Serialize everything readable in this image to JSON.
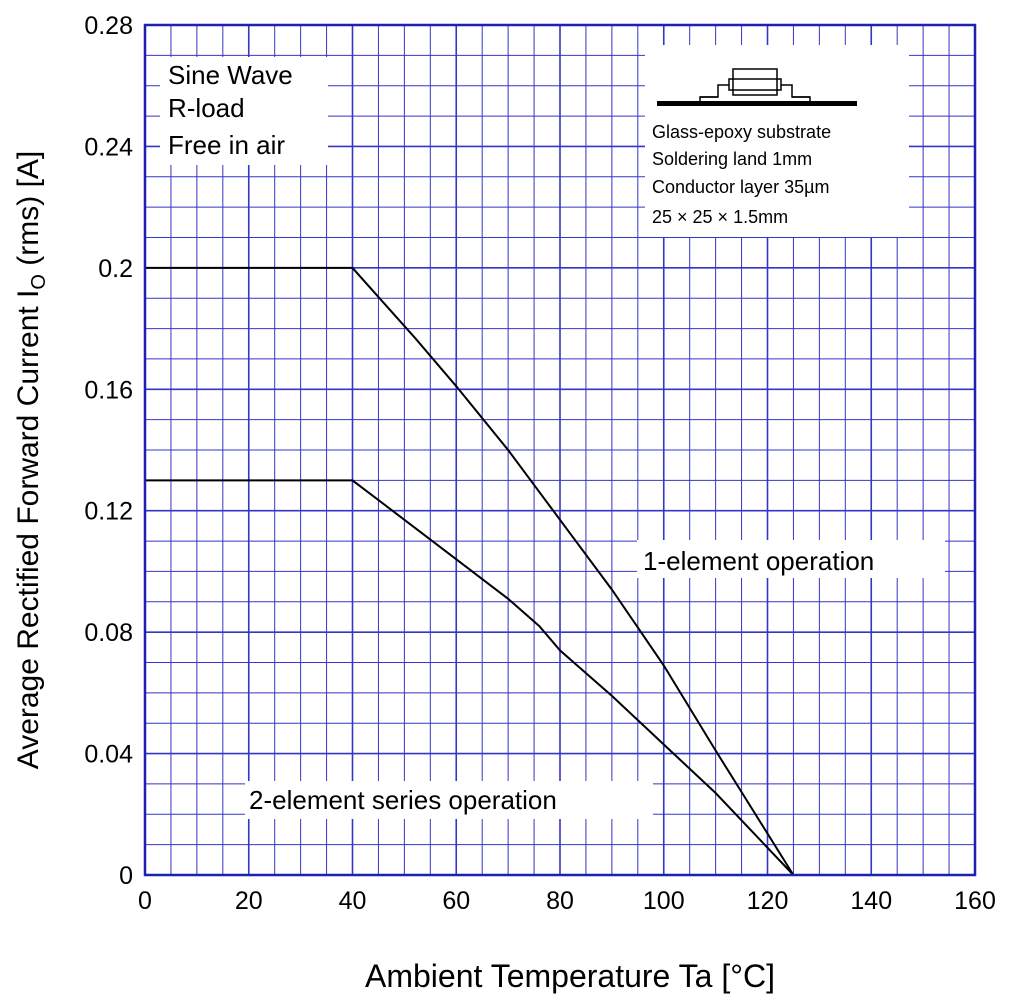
{
  "chart_data": {
    "type": "line",
    "xlabel": "Ambient Temperature  Ta  [°C]",
    "ylabel_main": "Average Rectified Forward Current  I",
    "ylabel_sub": "O",
    "ylabel_unit": "  (rms)  [A]",
    "xlim": [
      0,
      160
    ],
    "ylim": [
      0,
      0.28
    ],
    "x_ticks": [
      0,
      20,
      40,
      60,
      80,
      100,
      120,
      140,
      160
    ],
    "x_tick_labels": [
      "0",
      "20",
      "40",
      "60",
      "80",
      "100",
      "120",
      "140",
      "160"
    ],
    "y_ticks": [
      0,
      0.04,
      0.08,
      0.12,
      0.16,
      0.2,
      0.24,
      0.28
    ],
    "y_tick_labels": [
      "0",
      "0.04",
      "0.08",
      "0.12",
      "0.16",
      "0.2",
      "0.24",
      "0.28"
    ],
    "grid": true,
    "grid_color": "#3535c8",
    "line_color": "#000000",
    "series": [
      {
        "name": "1-element  operation",
        "x": [
          0,
          40,
          52,
          60,
          70,
          80,
          90,
          100,
          110,
          125
        ],
        "y": [
          0.2,
          0.2,
          0.177,
          0.161,
          0.14,
          0.117,
          0.094,
          0.069,
          0.041,
          0.0
        ]
      },
      {
        "name": "2-element  series  operation",
        "x": [
          0,
          40,
          50,
          60,
          70,
          76,
          80,
          90,
          100,
          110,
          125
        ],
        "y": [
          0.13,
          0.13,
          0.117,
          0.104,
          0.091,
          0.082,
          0.074,
          0.059,
          0.043,
          0.027,
          0.0
        ]
      }
    ],
    "conditions": [
      "Sine Wave",
      "R-load",
      "Free in air"
    ],
    "substrate_notes": [
      "Glass-epoxy   substrate",
      "Soldering land 1mm",
      "Conductor layer 35µm",
      "25 × 25 × 1.5mm"
    ]
  }
}
